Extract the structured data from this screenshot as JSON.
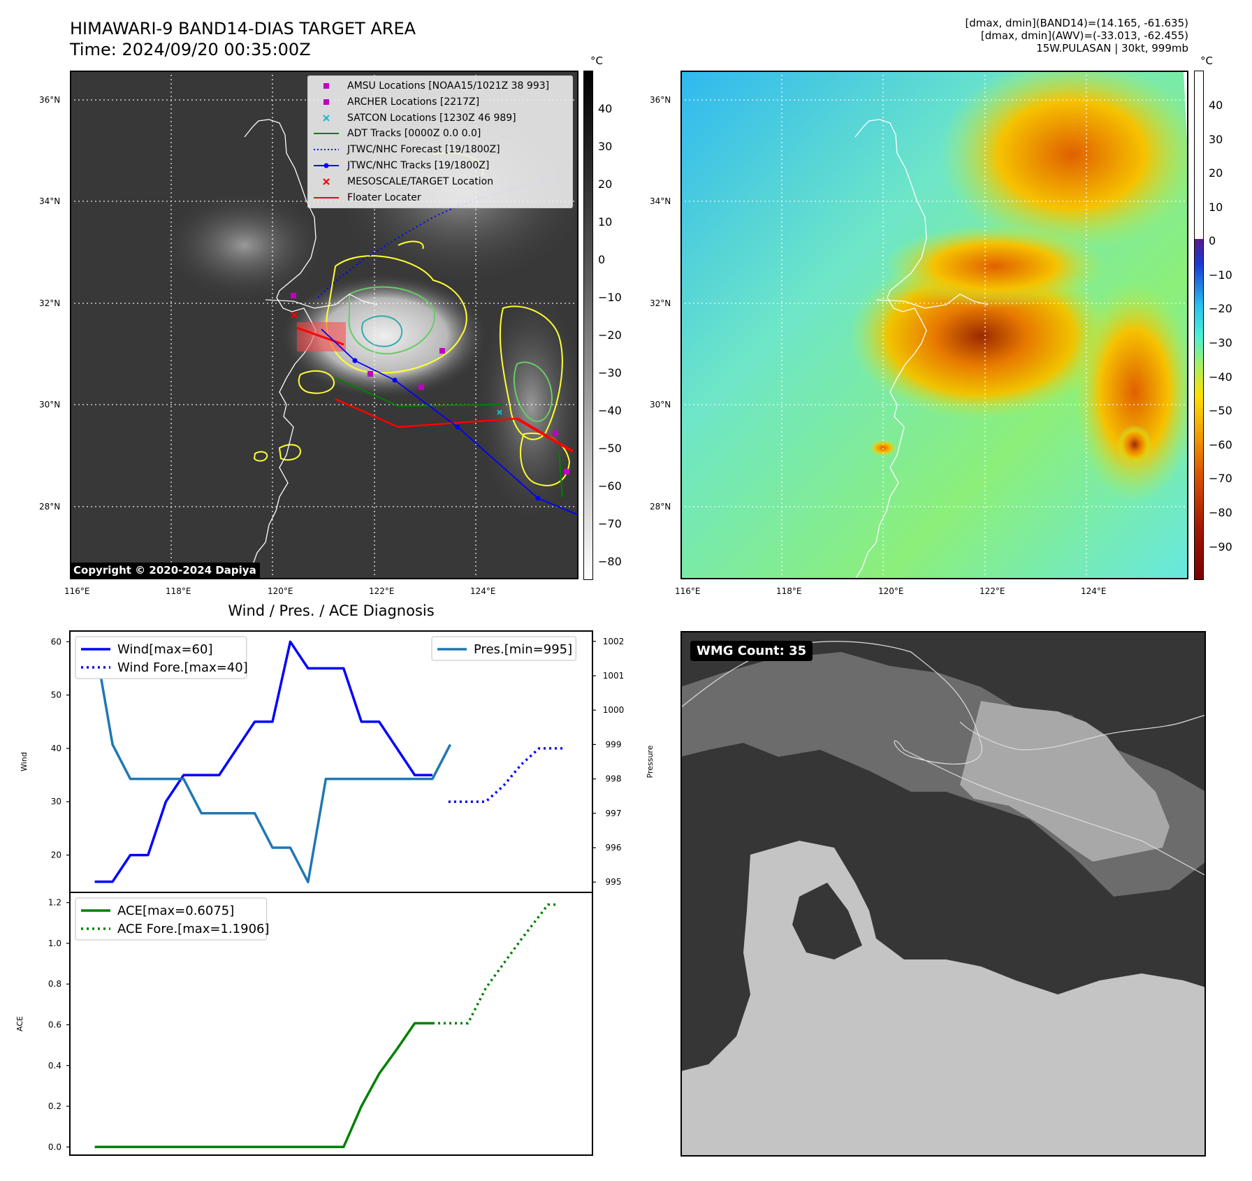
{
  "header": {
    "title_line1": "HIMAWARI-9 BAND14-DIAS TARGET AREA",
    "title_line2": "Time: 2024/09/20 00:35:00Z",
    "stats_line1": "[dmax, dmin](BAND14)=(14.165, -61.635)",
    "stats_line2": "[dmax, dmin](AWV)=(-33.013, -62.455)",
    "stats_line3": "15W.PULASAN | 30kt, 999mb"
  },
  "map_axes": {
    "lon_ticks": [
      "116°E",
      "118°E",
      "120°E",
      "122°E",
      "124°E"
    ],
    "lat_ticks": [
      "36°N",
      "34°N",
      "32°N",
      "30°N",
      "28°N"
    ]
  },
  "colorbar_left": {
    "unit": "°C",
    "ticks": [
      "40",
      "30",
      "20",
      "10",
      "0",
      "−10",
      "−20",
      "−30",
      "−40",
      "−50",
      "−60",
      "−70",
      "−80"
    ]
  },
  "colorbar_right": {
    "unit": "°C",
    "ticks": [
      "40",
      "30",
      "20",
      "10",
      "0",
      "−10",
      "−20",
      "−30",
      "−40",
      "−50",
      "−60",
      "−70",
      "−80",
      "−90"
    ]
  },
  "legend_map": [
    {
      "label": "AMSU Locations [NOAA15/1021Z 38 993]",
      "icon": "square-marker",
      "color": "#bf00bf"
    },
    {
      "label": "ARCHER Locations [2217Z]",
      "icon": "square-marker",
      "color": "#bf00bf"
    },
    {
      "label": "SATCON Locations [1230Z 46 989]",
      "icon": "x-marker",
      "color": "#17becf"
    },
    {
      "label": "ADT Tracks [0000Z 0.0 0.0]",
      "icon": "solid-line",
      "color": "#008000"
    },
    {
      "label": "JTWC/NHC Forecast [19/1800Z]",
      "icon": "dotted-line",
      "color": "#0000ff"
    },
    {
      "label": "JTWC/NHC Tracks [19/1800Z]",
      "icon": "line-dot",
      "color": "#0000ff"
    },
    {
      "label": "MESOSCALE/TARGET Location",
      "icon": "x-marker",
      "color": "#ff0000"
    },
    {
      "label": "Floater Locater",
      "icon": "solid-line",
      "color": "#ff0000"
    }
  ],
  "copyright": "Copyright © 2020-2024 Dapiya",
  "wmg_count": "WMG Count: 35",
  "chart_data": [
    {
      "type": "line",
      "title": "Wind / Pres. / ACE Diagnosis",
      "ylabel": "Wind",
      "y2label": "Pressure",
      "ylim": [
        13,
        62
      ],
      "y2lim": [
        994.7,
        1002.3
      ],
      "yticks": [
        "20",
        "30",
        "40",
        "50",
        "60"
      ],
      "y2ticks": [
        "995",
        "996",
        "997",
        "998",
        "999",
        "1000",
        "1001",
        "1002"
      ],
      "legend_left": [
        "Wind[max=60]",
        "Wind Fore.[max=40]"
      ],
      "legend_right": [
        "Pres.[min=995]"
      ],
      "series": [
        {
          "name": "Wind[max=60]",
          "color": "#0000ff",
          "style": "solid",
          "axis": "left",
          "x": [
            0,
            1,
            2,
            3,
            4,
            5,
            6,
            7,
            8,
            9,
            10,
            11,
            12,
            13,
            14,
            15,
            16,
            17,
            18,
            19
          ],
          "values": [
            15,
            15,
            20,
            20,
            30,
            35,
            35,
            35,
            40,
            45,
            45,
            60,
            55,
            55,
            55,
            45,
            45,
            40,
            35,
            35
          ]
        },
        {
          "name": "Wind Fore.[max=40]",
          "color": "#0000ff",
          "style": "dotted",
          "axis": "left",
          "x": [
            19.9,
            21,
            22,
            23,
            24,
            25,
            26.5
          ],
          "values": [
            30,
            30,
            30,
            33,
            37,
            40,
            40
          ]
        },
        {
          "name": "Pres.[min=995]",
          "color": "#1f77b4",
          "style": "solid",
          "axis": "right",
          "x": [
            0,
            1,
            2,
            3,
            4,
            5,
            6,
            7,
            8,
            9,
            10,
            11,
            12,
            13,
            14,
            15,
            16,
            17,
            18,
            19,
            20
          ],
          "values": [
            1002,
            999,
            998,
            998,
            998,
            998,
            997,
            997,
            997,
            997,
            996,
            996,
            995,
            998,
            998,
            998,
            998,
            998,
            998,
            998,
            999
          ]
        }
      ]
    },
    {
      "type": "line",
      "ylabel": "ACE",
      "ylim": [
        -0.04,
        1.25
      ],
      "yticks": [
        "0.0",
        "0.2",
        "0.4",
        "0.6",
        "0.8",
        "1.0",
        "1.2"
      ],
      "legend": [
        "ACE[max=0.6075]",
        "ACE Fore.[max=1.1906]"
      ],
      "series": [
        {
          "name": "ACE[max=0.6075]",
          "color": "#008000",
          "style": "solid",
          "x": [
            0,
            14,
            15,
            16,
            17,
            18,
            19
          ],
          "values": [
            0,
            0,
            0.2,
            0.36,
            0.48,
            0.6075,
            0.6075
          ]
        },
        {
          "name": "ACE Fore.[max=1.1906]",
          "color": "#008000",
          "style": "dotted",
          "x": [
            19,
            21,
            22,
            24,
            25.5,
            26
          ],
          "values": [
            0.6075,
            0.6075,
            0.78,
            1.02,
            1.19,
            1.19
          ]
        }
      ]
    }
  ]
}
